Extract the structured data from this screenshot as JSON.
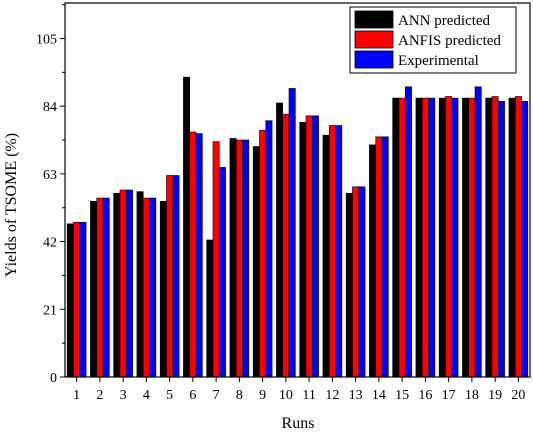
{
  "chart_data": {
    "type": "bar",
    "xlabel": "Runs",
    "ylabel": "Yields of TSOME (%)",
    "categories": [
      "1",
      "2",
      "3",
      "4",
      "5",
      "6",
      "7",
      "8",
      "9",
      "10",
      "11",
      "12",
      "13",
      "14",
      "15",
      "16",
      "17",
      "18",
      "19",
      "20"
    ],
    "ylim": [
      0,
      116
    ],
    "yticks": [
      0,
      21,
      42,
      63,
      84,
      105
    ],
    "series": [
      {
        "name": "ANN predicted",
        "color": "#000000",
        "values": [
          47.5,
          54.5,
          57,
          57.5,
          54.5,
          93,
          42.5,
          74,
          71.5,
          85,
          79,
          75,
          57,
          72,
          86.5,
          86.5,
          86.5,
          86.5,
          86.5,
          86.5
        ]
      },
      {
        "name": "ANFIS predicted",
        "color": "#ff0000",
        "values": [
          48,
          55.5,
          58,
          55.5,
          62.5,
          76,
          73,
          73.5,
          76.5,
          81.5,
          81,
          78,
          59,
          74.5,
          86.5,
          86.5,
          87,
          86.5,
          87,
          87
        ]
      },
      {
        "name": "Experimental",
        "color": "#0000ff",
        "values": [
          48,
          55.5,
          58,
          55.5,
          62.5,
          75.5,
          65,
          73.5,
          79.5,
          89.5,
          81,
          78,
          59,
          74.5,
          90,
          86.5,
          86.5,
          90,
          85.5,
          85.5
        ]
      }
    ],
    "legend_position": "top-right",
    "grid": false
  }
}
